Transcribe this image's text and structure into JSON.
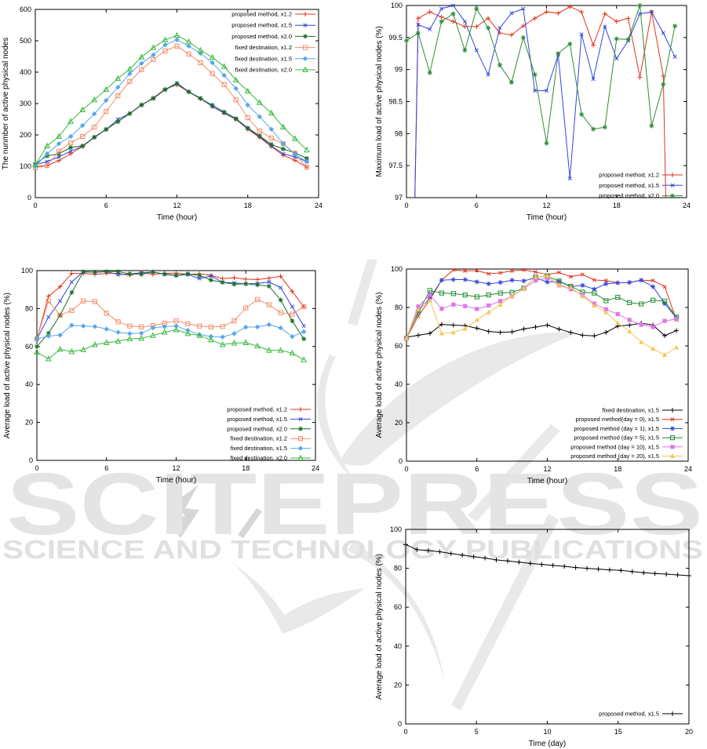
{
  "watermark": {
    "title": "SCITEPRESS",
    "subtitle": "SCIENCE AND TECHNOLOGY PUBLICATIONS",
    "title_color": "#e4e4e4",
    "subtitle_color": "#e0e0e0",
    "swoosh_color": "#e9e9e9",
    "glyph_color": "#d6d6d6"
  },
  "chart_data": [
    {
      "id": "active-nodes-count",
      "type": "line",
      "title": "",
      "xlabel": "Time (hour)",
      "ylabel": "The nunmber of active physical nodes",
      "xlim": [
        0,
        24
      ],
      "ylim": [
        0,
        600
      ],
      "xticks": [
        0,
        6,
        12,
        18,
        24
      ],
      "yticks": [
        0,
        100,
        200,
        300,
        400,
        500,
        600
      ],
      "ytick_labels": [
        "0",
        "100",
        "200",
        "300",
        "400",
        "500",
        "600"
      ],
      "grid": false,
      "legend_position": "top-right",
      "x": [
        0,
        1,
        2,
        3,
        4,
        5,
        6,
        7,
        8,
        9,
        10,
        11,
        12,
        13,
        14,
        15,
        16,
        17,
        18,
        19,
        20,
        21,
        22,
        23
      ],
      "series": [
        {
          "name": "proposed method, x1.2",
          "color": "#e2321c",
          "marker": "plus",
          "values": [
            100,
            102,
            118,
            140,
            163,
            192,
            217,
            243,
            268,
            295,
            318,
            346,
            360,
            337,
            315,
            291,
            269,
            250,
            218,
            192,
            163,
            135,
            119,
            97
          ]
        },
        {
          "name": "proposed method, x1.5",
          "color": "#3346dd",
          "marker": "cross",
          "values": [
            105,
            115,
            130,
            148,
            164,
            192,
            217,
            250,
            268,
            295,
            317,
            345,
            365,
            338,
            317,
            290,
            270,
            250,
            220,
            195,
            165,
            140,
            130,
            115
          ]
        },
        {
          "name": "proposed method, x2.0",
          "color": "#186f26",
          "marker": "asterisk",
          "values": [
            108,
            133,
            140,
            160,
            165,
            193,
            218,
            242,
            268,
            296,
            316,
            344,
            363,
            337,
            316,
            295,
            273,
            252,
            222,
            197,
            170,
            155,
            143,
            125
          ]
        },
        {
          "name": "fixed destination, x1.2",
          "color": "#f28e68",
          "marker": "square-open",
          "values": [
            95,
            102,
            148,
            175,
            195,
            225,
            275,
            325,
            370,
            408,
            440,
            468,
            483,
            458,
            430,
            395,
            360,
            312,
            255,
            212,
            190,
            172,
            140,
            97
          ]
        },
        {
          "name": "fixed destination, x1.5",
          "color": "#58a6ee",
          "marker": "diamond-filled",
          "values": [
            100,
            140,
            172,
            195,
            230,
            267,
            310,
            352,
            395,
            428,
            455,
            487,
            503,
            483,
            460,
            430,
            390,
            348,
            295,
            258,
            218,
            172,
            138,
            115
          ]
        },
        {
          "name": "fixed destination, x2.0",
          "color": "#38b838",
          "marker": "triangle-open",
          "values": [
            105,
            165,
            195,
            243,
            280,
            312,
            345,
            380,
            410,
            448,
            478,
            503,
            517,
            497,
            470,
            447,
            418,
            375,
            340,
            303,
            270,
            225,
            188,
            152
          ]
        }
      ]
    },
    {
      "id": "maximum-load",
      "type": "line",
      "title": "",
      "xlabel": "Time (hour)",
      "ylabel": "Maximum load of active physical nodes (%)",
      "xlim": [
        0,
        24
      ],
      "ylim": [
        97,
        100
      ],
      "xticks": [
        0,
        6,
        12,
        18,
        24
      ],
      "yticks": [
        97,
        97.5,
        98,
        98.5,
        99,
        99.5,
        100
      ],
      "ytick_labels": [
        "97",
        "97.5",
        "98",
        "98.5",
        "99",
        "99.5",
        "100"
      ],
      "grid": false,
      "legend_position": "bottom-right",
      "x": [
        0,
        1,
        2,
        3,
        4,
        5,
        6,
        7,
        8,
        9,
        10,
        11,
        12,
        13,
        14,
        15,
        16,
        17,
        18,
        19,
        20,
        21,
        22,
        23
      ],
      "series": [
        {
          "name": "proposed method, x1.2",
          "color": "#e2321c",
          "marker": "plus",
          "values": [
            90,
            99.8,
            99.9,
            99.82,
            99.75,
            99.67,
            99.67,
            99.8,
            99.57,
            99.54,
            99.68,
            99.8,
            99.9,
            99.88,
            99.98,
            99.9,
            99.38,
            99.87,
            99.75,
            99.8,
            98.88,
            99.9,
            98.9,
            90
          ]
        },
        {
          "name": "proposed method, x1.5",
          "color": "#3346dd",
          "marker": "cross",
          "values": [
            90,
            99.7,
            99.63,
            99.95,
            100,
            99.75,
            99.3,
            98.92,
            99.65,
            99.88,
            99.95,
            98.67,
            98.67,
            99.23,
            97.3,
            99.55,
            98.85,
            99.67,
            99.17,
            99.45,
            99.87,
            99.9,
            99.57,
            99.2
          ]
        },
        {
          "name": "proposed method, x2.0",
          "color": "#2e8b3a",
          "marker": "asterisk",
          "values": [
            99.45,
            99.57,
            98.95,
            99.75,
            99.87,
            99.3,
            99.95,
            99.65,
            99.07,
            98.8,
            99.5,
            98.92,
            97.85,
            99.25,
            99.4,
            98.3,
            98.07,
            98.1,
            99.48,
            99.47,
            100,
            98.12,
            98.77,
            99.68
          ]
        }
      ]
    },
    {
      "id": "average-load-methods",
      "type": "line",
      "title": "",
      "xlabel": "Time (hour)",
      "ylabel": "Average load of active physical nodes (%)",
      "xlim": [
        0,
        24
      ],
      "ylim": [
        0,
        100
      ],
      "xticks": [
        0,
        6,
        12,
        18,
        24
      ],
      "yticks": [
        0,
        20,
        40,
        60,
        80,
        100
      ],
      "ytick_labels": [
        "0",
        "20",
        "40",
        "60",
        "80",
        "100"
      ],
      "grid": false,
      "legend_position": "bottom-right",
      "x": [
        0,
        1,
        2,
        3,
        4,
        5,
        6,
        7,
        8,
        9,
        10,
        11,
        12,
        13,
        14,
        15,
        16,
        17,
        18,
        19,
        20,
        21,
        22,
        23
      ],
      "series": [
        {
          "name": "proposed method, x1.2",
          "color": "#e2321c",
          "marker": "plus",
          "values": [
            64,
            86.5,
            91.5,
            98.5,
            98.5,
            98,
            98.5,
            98.5,
            97.5,
            99,
            98,
            98.5,
            98.7,
            98,
            98.3,
            97.5,
            95.8,
            96.2,
            95.5,
            95.3,
            96,
            97,
            89,
            81
          ]
        },
        {
          "name": "proposed method, x1.5",
          "color": "#3346dd",
          "marker": "cross",
          "values": [
            64,
            75.5,
            84,
            94,
            99.5,
            99,
            99.5,
            97.8,
            98.3,
            98.8,
            99.3,
            98,
            97.3,
            98,
            95.8,
            97.2,
            93.8,
            93.5,
            93,
            93.2,
            94,
            91,
            81,
            70.8
          ]
        },
        {
          "name": "proposed method, x2.0",
          "color": "#186f26",
          "marker": "asterisk",
          "values": [
            60,
            67,
            76.5,
            88.5,
            99.3,
            99.2,
            99.5,
            99.5,
            98.3,
            98,
            99.3,
            98.2,
            97.5,
            98.3,
            97.5,
            95,
            93.8,
            92.8,
            93,
            92.5,
            91.8,
            84.5,
            73.5,
            64
          ]
        },
        {
          "name": "fixed destination, x1.2",
          "color": "#f28e68",
          "marker": "square-open",
          "values": [
            64,
            84,
            76.5,
            79,
            84,
            83.7,
            77.5,
            73,
            70.8,
            70.3,
            71,
            72.3,
            73.5,
            72,
            70.8,
            70.3,
            70.5,
            73.5,
            80.3,
            84.8,
            82,
            77.8,
            77,
            81
          ]
        },
        {
          "name": "fixed destination, x1.5",
          "color": "#58a6ee",
          "marker": "diamond-filled",
          "values": [
            64,
            65.5,
            66,
            71.2,
            70.8,
            70.5,
            69.2,
            67.5,
            66.8,
            67,
            69.8,
            70.5,
            70.8,
            68.5,
            66.3,
            65.3,
            65,
            66.8,
            70.2,
            70.3,
            71.5,
            69.8,
            65.2,
            67.8
          ]
        },
        {
          "name": "fixed destination, x2.0",
          "color": "#38b838",
          "marker": "triangle-open",
          "values": [
            57,
            53.5,
            58.5,
            57.3,
            58.3,
            61,
            62,
            62.8,
            64,
            64.3,
            65.8,
            67.5,
            68.8,
            66.8,
            65.8,
            63.5,
            61,
            61.8,
            62,
            60.3,
            58,
            58,
            56.5,
            53
          ]
        }
      ]
    },
    {
      "id": "average-load-days",
      "type": "line",
      "title": "",
      "xlabel": "Time (hour)",
      "ylabel": "Average load of active physical nodes (%)",
      "xlim": [
        0,
        24
      ],
      "ylim": [
        0,
        100
      ],
      "xticks": [
        0,
        6,
        12,
        18,
        24
      ],
      "yticks": [
        0,
        20,
        40,
        60,
        80,
        100
      ],
      "ytick_labels": [
        "0",
        "20",
        "40",
        "60",
        "80",
        "100"
      ],
      "grid": false,
      "legend_position": "bottom-right",
      "x": [
        0,
        1,
        2,
        3,
        4,
        5,
        6,
        7,
        8,
        9,
        10,
        11,
        12,
        13,
        14,
        15,
        16,
        17,
        18,
        19,
        20,
        21,
        22,
        23
      ],
      "series": [
        {
          "name": "fixed destination, x1.5",
          "color": "#000000",
          "marker": "plus",
          "values": [
            64.5,
            65.5,
            66.5,
            71.2,
            70.8,
            70.5,
            69.2,
            67.5,
            67,
            67.3,
            68.8,
            69.8,
            70.8,
            68.7,
            67,
            65.5,
            65.2,
            67,
            70.3,
            70.8,
            71.8,
            70.8,
            65.3,
            68
          ]
        },
        {
          "name": "proposed method(day = 0), x1.5",
          "color": "#e2321c",
          "marker": "cross",
          "values": [
            64,
            75.5,
            84,
            94.3,
            99.5,
            99,
            99.2,
            97.5,
            98,
            99,
            99.5,
            98.5,
            97,
            98.2,
            96,
            97.2,
            94.3,
            94,
            92.8,
            93,
            94.2,
            94,
            90.8,
            73.5
          ]
        },
        {
          "name": "proposed method (day = 1), x1.5",
          "color": "#3346dd",
          "marker": "asterisk",
          "values": [
            64,
            78,
            85,
            94.2,
            94.5,
            94.5,
            93.3,
            92.3,
            93,
            94.2,
            93.8,
            95.5,
            93.2,
            93.5,
            90.8,
            91.5,
            89.5,
            92.3,
            92.8,
            93,
            94.2,
            90.8,
            82,
            74.5
          ]
        },
        {
          "name": "proposed method (day = 5), x1.5",
          "color": "#1e8c30",
          "marker": "square-open",
          "values": [
            64,
            77.5,
            88.8,
            87.5,
            87.2,
            86.5,
            85.5,
            86.5,
            87.5,
            87.8,
            90,
            95.8,
            96.3,
            93.7,
            91,
            88,
            87.5,
            83.5,
            85.3,
            82.5,
            81.8,
            83.8,
            83.3,
            75
          ]
        },
        {
          "name": "proposed method (day = 10), x1.5",
          "color": "#df76e8",
          "marker": "square-filled",
          "values": [
            64,
            80.5,
            86.5,
            79.3,
            81.5,
            80.7,
            79.2,
            81,
            83.3,
            85.8,
            89.8,
            94,
            95.3,
            91.5,
            89.5,
            86.5,
            82,
            79,
            76.5,
            73.5,
            71,
            69.8,
            73,
            74
          ]
        },
        {
          "name": "proposed method (day = 20), x1.5",
          "color": "#f6c457",
          "marker": "triangle-filled",
          "values": [
            64,
            79,
            83.8,
            66.5,
            67,
            69,
            73.5,
            77.5,
            81.5,
            86,
            90,
            95.8,
            96.5,
            91.8,
            90.5,
            85.8,
            81,
            77.5,
            72,
            67.5,
            62,
            58.5,
            55.3,
            59.2
          ]
        }
      ]
    },
    {
      "id": "average-load-longterm",
      "type": "line",
      "title": "",
      "xlabel": "Time (day)",
      "ylabel": "Average load of active physical nodes (%)",
      "xlim": [
        0,
        20
      ],
      "ylim": [
        0,
        100
      ],
      "xticks": [
        0,
        5,
        10,
        15,
        20
      ],
      "yticks": [
        0,
        20,
        40,
        60,
        80,
        100
      ],
      "ytick_labels": [
        "0",
        "20",
        "40",
        "60",
        "80",
        "100"
      ],
      "grid": false,
      "legend_position": "bottom-right",
      "x": [
        0,
        0.8,
        1.6,
        2.4,
        3.2,
        4,
        4.8,
        5.6,
        6.4,
        7.2,
        8,
        8.8,
        9.6,
        10.4,
        11.2,
        12,
        12.8,
        13.6,
        14.4,
        15.2,
        16,
        16.8,
        17.6,
        18.4,
        19.2,
        20
      ],
      "series": [
        {
          "name": "proposed method, x1.5",
          "color": "#000000",
          "marker": "plus",
          "values": [
            92.2,
            89.6,
            89.1,
            88.5,
            87.6,
            86.8,
            86.0,
            85.3,
            84.3,
            83.8,
            83.2,
            82.5,
            82.0,
            81.5,
            81.0,
            80.4,
            80.0,
            79.6,
            79.2,
            78.9,
            78.3,
            77.7,
            77.3,
            77.0,
            76.6,
            76.2
          ]
        }
      ]
    }
  ]
}
